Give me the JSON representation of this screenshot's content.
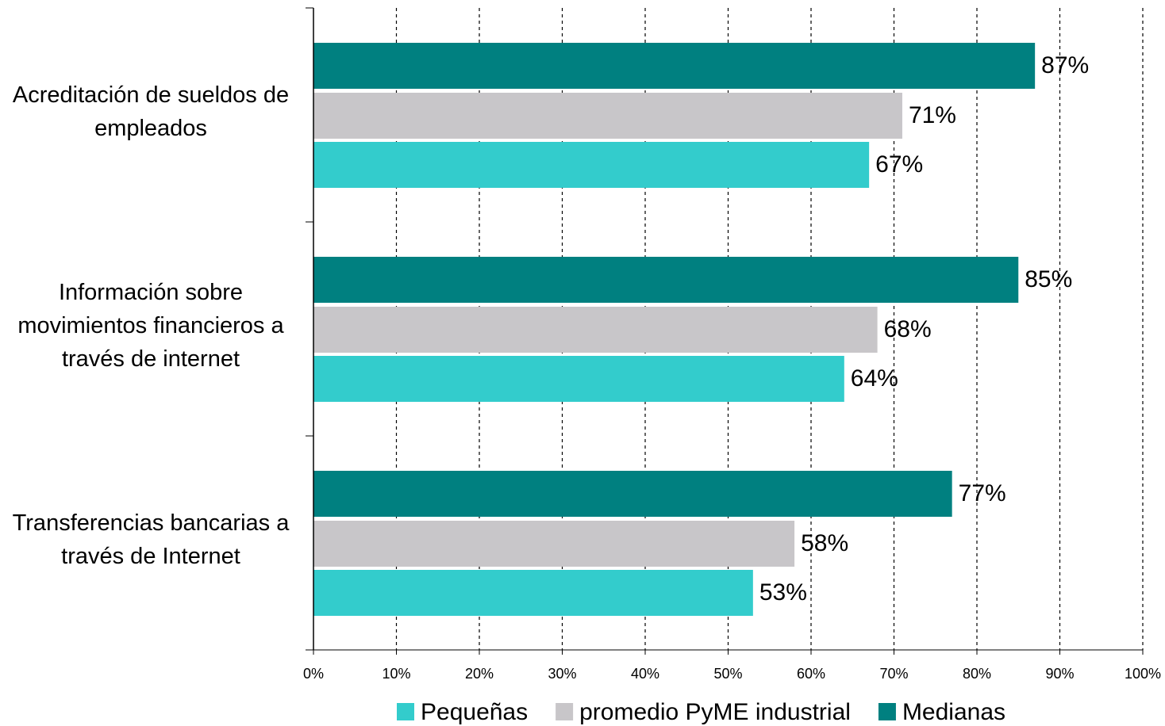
{
  "chart_data": {
    "type": "hbar",
    "categories": [
      "Acreditación de sueldos de empleados",
      "Información sobre movimientos financieros a través de internet",
      "Transferencias bancarias a través de Internet"
    ],
    "series": [
      {
        "name": "Pequeñas",
        "color": "#33cccc",
        "values": [
          67,
          64,
          53
        ],
        "value_labels": [
          "67%",
          "64%",
          "53%"
        ]
      },
      {
        "name": "promedio PyME industrial",
        "color": "#c8c6c9",
        "values": [
          71,
          68,
          58
        ],
        "value_labels": [
          "71%",
          "68%",
          "58%"
        ]
      },
      {
        "name": "Medianas",
        "color": "#008080",
        "values": [
          87,
          85,
          77
        ],
        "value_labels": [
          "87%",
          "85%",
          "77%"
        ]
      }
    ],
    "xlim": [
      0,
      100
    ],
    "xticks": [
      {
        "value": 0,
        "label": "0%"
      },
      {
        "value": 10,
        "label": "10%"
      },
      {
        "value": 20,
        "label": "20%"
      },
      {
        "value": 30,
        "label": "30%"
      },
      {
        "value": 40,
        "label": "40%"
      },
      {
        "value": 50,
        "label": "50%"
      },
      {
        "value": 60,
        "label": "60%"
      },
      {
        "value": 70,
        "label": "70%"
      },
      {
        "value": 80,
        "label": "80%"
      },
      {
        "value": 90,
        "label": "90%"
      },
      {
        "value": 100,
        "label": "100%"
      }
    ],
    "grid": true,
    "legend": "bottom"
  }
}
